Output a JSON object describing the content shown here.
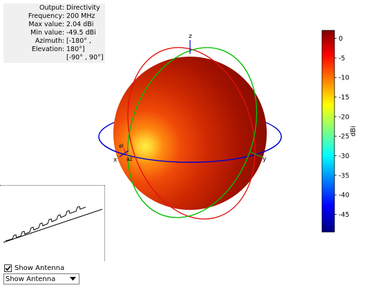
{
  "info": {
    "rows": [
      {
        "label": "Output",
        "value": "Directivity"
      },
      {
        "label": "Frequency",
        "value": "200 MHz"
      },
      {
        "label": "Max value",
        "value": "2.04 dBi"
      },
      {
        "label": "Min value",
        "value": "-49.5 dBi"
      },
      {
        "label": "Azimuth",
        "value": "[-180° ,"
      },
      {
        "label": "Elevation",
        "value": "180°]"
      }
    ],
    "extra_line": "[-90° , 90°]"
  },
  "axes": {
    "x_label": "x",
    "y_label": "y",
    "z_label": "z",
    "az_label": "az",
    "el_label": "el"
  },
  "colorbar": {
    "unit_label": "dBi",
    "ticks": [
      "0",
      "-5",
      "-10",
      "-15",
      "-20",
      "-25",
      "-30",
      "-35",
      "-40",
      "-45"
    ],
    "tick_values": [
      0,
      -5,
      -10,
      -15,
      -20,
      -25,
      -30,
      -35,
      -40,
      -45
    ],
    "range": [
      -49.5,
      2.04
    ]
  },
  "colors": {
    "sphere": "#c51c00",
    "hotspot": "#ffe840",
    "azimuth_circle": "#0000cc",
    "elevation_circle_red": "#e01010",
    "elevation_circle_green": "#00c000"
  },
  "controls": {
    "show_antenna_checkbox_label": "Show Antenna",
    "show_antenna_checked": true,
    "dropdown_selected": "Show Antenna"
  }
}
